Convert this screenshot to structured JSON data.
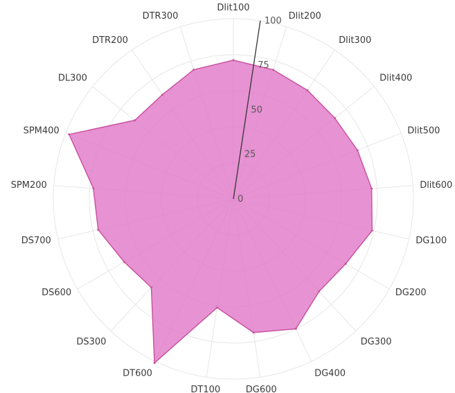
{
  "chart_data": {
    "type": "radar",
    "title": "",
    "categories": [
      "Dlit100",
      "Dlit200",
      "Dlit300",
      "Dlit400",
      "Dlit500",
      "Dlit600",
      "DG100",
      "DG200",
      "DG300",
      "DG400",
      "DG600",
      "DT100",
      "DT600",
      "DS300",
      "DS600",
      "DS700",
      "SPM200",
      "SPM400",
      "DL300",
      "DTR200",
      "DTR300"
    ],
    "series": [
      {
        "values": [
          77,
          75,
          73,
          72,
          74,
          77,
          79,
          72,
          70,
          80,
          75,
          61,
          101,
          67,
          70,
          77,
          78,
          98,
          70,
          70,
          75
        ]
      }
    ],
    "rlim": [
      0,
      100
    ],
    "rticks": [
      0,
      25,
      50,
      75,
      100
    ],
    "grid": true,
    "colors": {
      "fill": "#e27ac8",
      "stroke": "#c8549e",
      "grid": "#e6e6e6",
      "radial_axis": "#333333"
    }
  }
}
